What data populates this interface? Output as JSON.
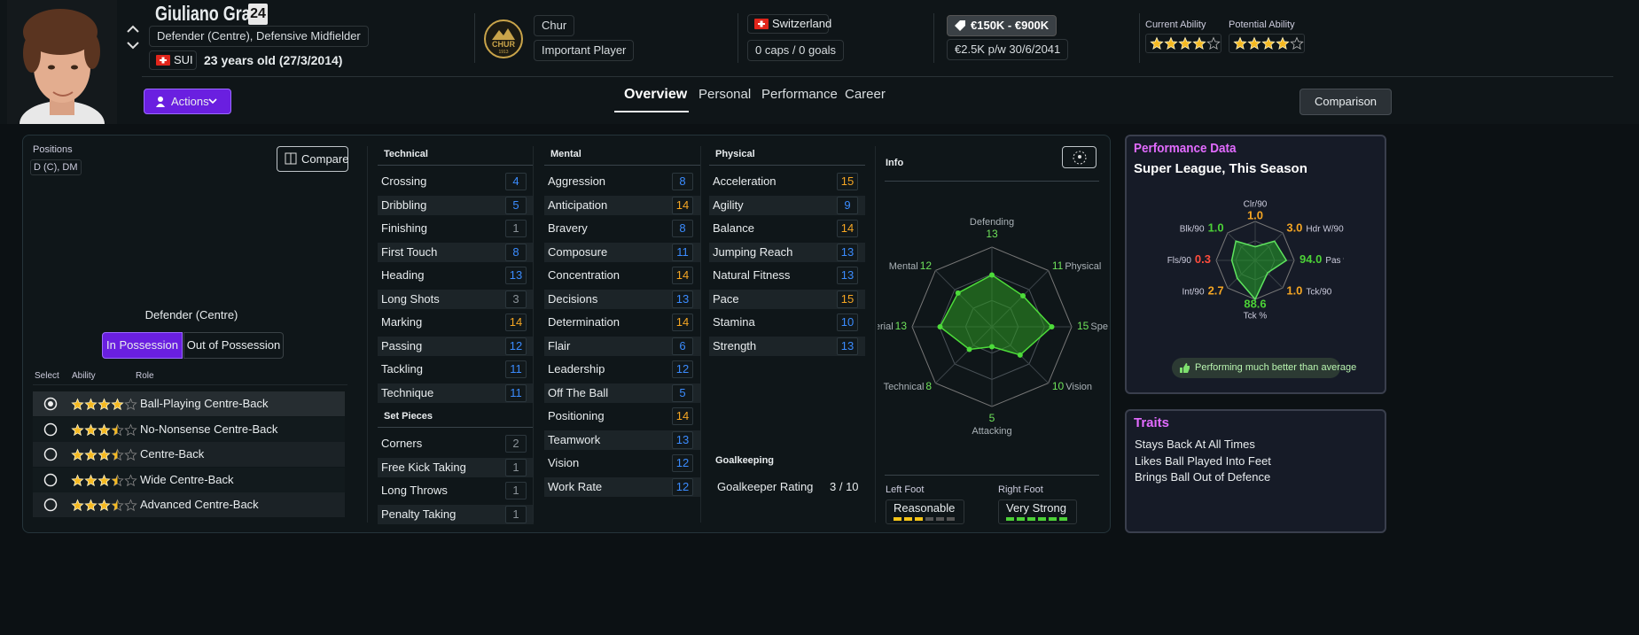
{
  "header": {
    "name": "Giuliano Graf",
    "squad_number": "24",
    "positions": "Defender (Centre), Defensive Midfielder",
    "nationality": "SUI",
    "age": "23 years old (27/3/2014)",
    "club": "Chur",
    "club_badge": {
      "name": "CHUR",
      "year": "1913"
    },
    "squad_status": "Important Player",
    "country": "Switzerland",
    "caps": "0 caps / 0 goals",
    "value": "€150K - €900K",
    "wage": "€2.5K p/w 30/6/2041",
    "current_ability": {
      "label": "Current Ability",
      "stars": 4
    },
    "potential_ability": {
      "label": "Potential Ability",
      "stars": 4
    }
  },
  "nav": {
    "actions": "Actions",
    "tabs": [
      "Overview",
      "Personal",
      "Performance",
      "Career"
    ],
    "active_tab": 0,
    "comparison": "Comparison"
  },
  "positions_panel": {
    "label": "Positions",
    "value": "D (C), DM",
    "compare": "Compare",
    "selected_position": "Defender (Centre)",
    "toggle": [
      "In Possession",
      "Out of Possession"
    ],
    "columns": [
      "Select",
      "Ability",
      "Role"
    ],
    "roles": [
      {
        "name": "Ball-Playing Centre-Back",
        "stars": 4,
        "selected": true
      },
      {
        "name": "No-Nonsense Centre-Back",
        "stars": 3.5,
        "selected": false
      },
      {
        "name": "Centre-Back",
        "stars": 3.5,
        "selected": false
      },
      {
        "name": "Wide Centre-Back",
        "stars": 3.5,
        "selected": false
      },
      {
        "name": "Advanced Centre-Back",
        "stars": 3.5,
        "selected": false
      }
    ]
  },
  "attributes": {
    "groups": [
      {
        "title": "Technical",
        "items": [
          {
            "name": "Crossing",
            "value": 4
          },
          {
            "name": "Dribbling",
            "value": 5
          },
          {
            "name": "Finishing",
            "value": 1
          },
          {
            "name": "First Touch",
            "value": 8
          },
          {
            "name": "Heading",
            "value": 13
          },
          {
            "name": "Long Shots",
            "value": 3
          },
          {
            "name": "Marking",
            "value": 14
          },
          {
            "name": "Passing",
            "value": 12
          },
          {
            "name": "Tackling",
            "value": 11
          },
          {
            "name": "Technique",
            "value": 11
          }
        ]
      },
      {
        "title": "Set Pieces",
        "items": [
          {
            "name": "Corners",
            "value": 2
          },
          {
            "name": "Free Kick Taking",
            "value": 1
          },
          {
            "name": "Long Throws",
            "value": 1
          },
          {
            "name": "Penalty Taking",
            "value": 1
          }
        ]
      },
      {
        "title": "Mental",
        "items": [
          {
            "name": "Aggression",
            "value": 8
          },
          {
            "name": "Anticipation",
            "value": 14
          },
          {
            "name": "Bravery",
            "value": 8
          },
          {
            "name": "Composure",
            "value": 11
          },
          {
            "name": "Concentration",
            "value": 14
          },
          {
            "name": "Decisions",
            "value": 13
          },
          {
            "name": "Determination",
            "value": 14
          },
          {
            "name": "Flair",
            "value": 6
          },
          {
            "name": "Leadership",
            "value": 12
          },
          {
            "name": "Off The Ball",
            "value": 5
          },
          {
            "name": "Positioning",
            "value": 14
          },
          {
            "name": "Teamwork",
            "value": 13
          },
          {
            "name": "Vision",
            "value": 12
          },
          {
            "name": "Work Rate",
            "value": 12
          }
        ]
      },
      {
        "title": "Physical",
        "items": [
          {
            "name": "Acceleration",
            "value": 15
          },
          {
            "name": "Agility",
            "value": 9
          },
          {
            "name": "Balance",
            "value": 14
          },
          {
            "name": "Jumping Reach",
            "value": 13
          },
          {
            "name": "Natural Fitness",
            "value": 13
          },
          {
            "name": "Pace",
            "value": 15
          },
          {
            "name": "Stamina",
            "value": 10
          },
          {
            "name": "Strength",
            "value": 13
          }
        ]
      }
    ],
    "goalkeeping": {
      "title": "Goalkeeping",
      "label": "Goalkeeper Rating",
      "value": "3 / 10"
    }
  },
  "info": {
    "title": "Info",
    "rlim": [
      0,
      20
    ],
    "axes": [
      {
        "name": "Defending",
        "value": 13
      },
      {
        "name": "Physical",
        "value": 11
      },
      {
        "name": "Speed",
        "value": 15
      },
      {
        "name": "Vision",
        "value": 10
      },
      {
        "name": "Attacking",
        "value": 5
      },
      {
        "name": "Technical",
        "value": 8
      },
      {
        "name": "Aerial",
        "value": 13
      },
      {
        "name": "Mental",
        "value": 12
      }
    ],
    "foot_levels": 6,
    "left_foot": {
      "label": "Left Foot",
      "rating": "Reasonable",
      "level": 3,
      "color": "#f5c518"
    },
    "right_foot": {
      "label": "Right Foot",
      "rating": "Very Strong",
      "level": 6,
      "color": "#4cd137"
    }
  },
  "performance": {
    "title": "Performance Data",
    "subtitle": "Super League, This Season",
    "score_lim": [
      0,
      100
    ],
    "metrics": [
      {
        "label": "Clr/90",
        "value": "1.0",
        "color": "#f5a623",
        "score": 35
      },
      {
        "label": "Hdr W/90",
        "value": "3.0",
        "color": "#f5a623",
        "score": 70
      },
      {
        "label": "Pas %",
        "value": "94.0",
        "color": "#4cd137",
        "score": 80
      },
      {
        "label": "Tck/90",
        "value": "1.0",
        "color": "#f5a623",
        "score": 45
      },
      {
        "label": "Tck %",
        "value": "88.6",
        "color": "#4cd137",
        "score": 100
      },
      {
        "label": "Int/90",
        "value": "2.7",
        "color": "#f5a623",
        "score": 65
      },
      {
        "label": "Fls/90",
        "value": "0.3",
        "color": "#ff4d3d",
        "score": 60
      },
      {
        "label": "Blk/90",
        "value": "1.0",
        "color": "#4cd137",
        "score": 70
      }
    ],
    "badge": "Performing much better than average"
  },
  "traits": {
    "title": "Traits",
    "items": [
      "Stays Back At All Times",
      "Likes Ball Played Into Feet",
      "Brings Ball Out of Defence"
    ]
  }
}
